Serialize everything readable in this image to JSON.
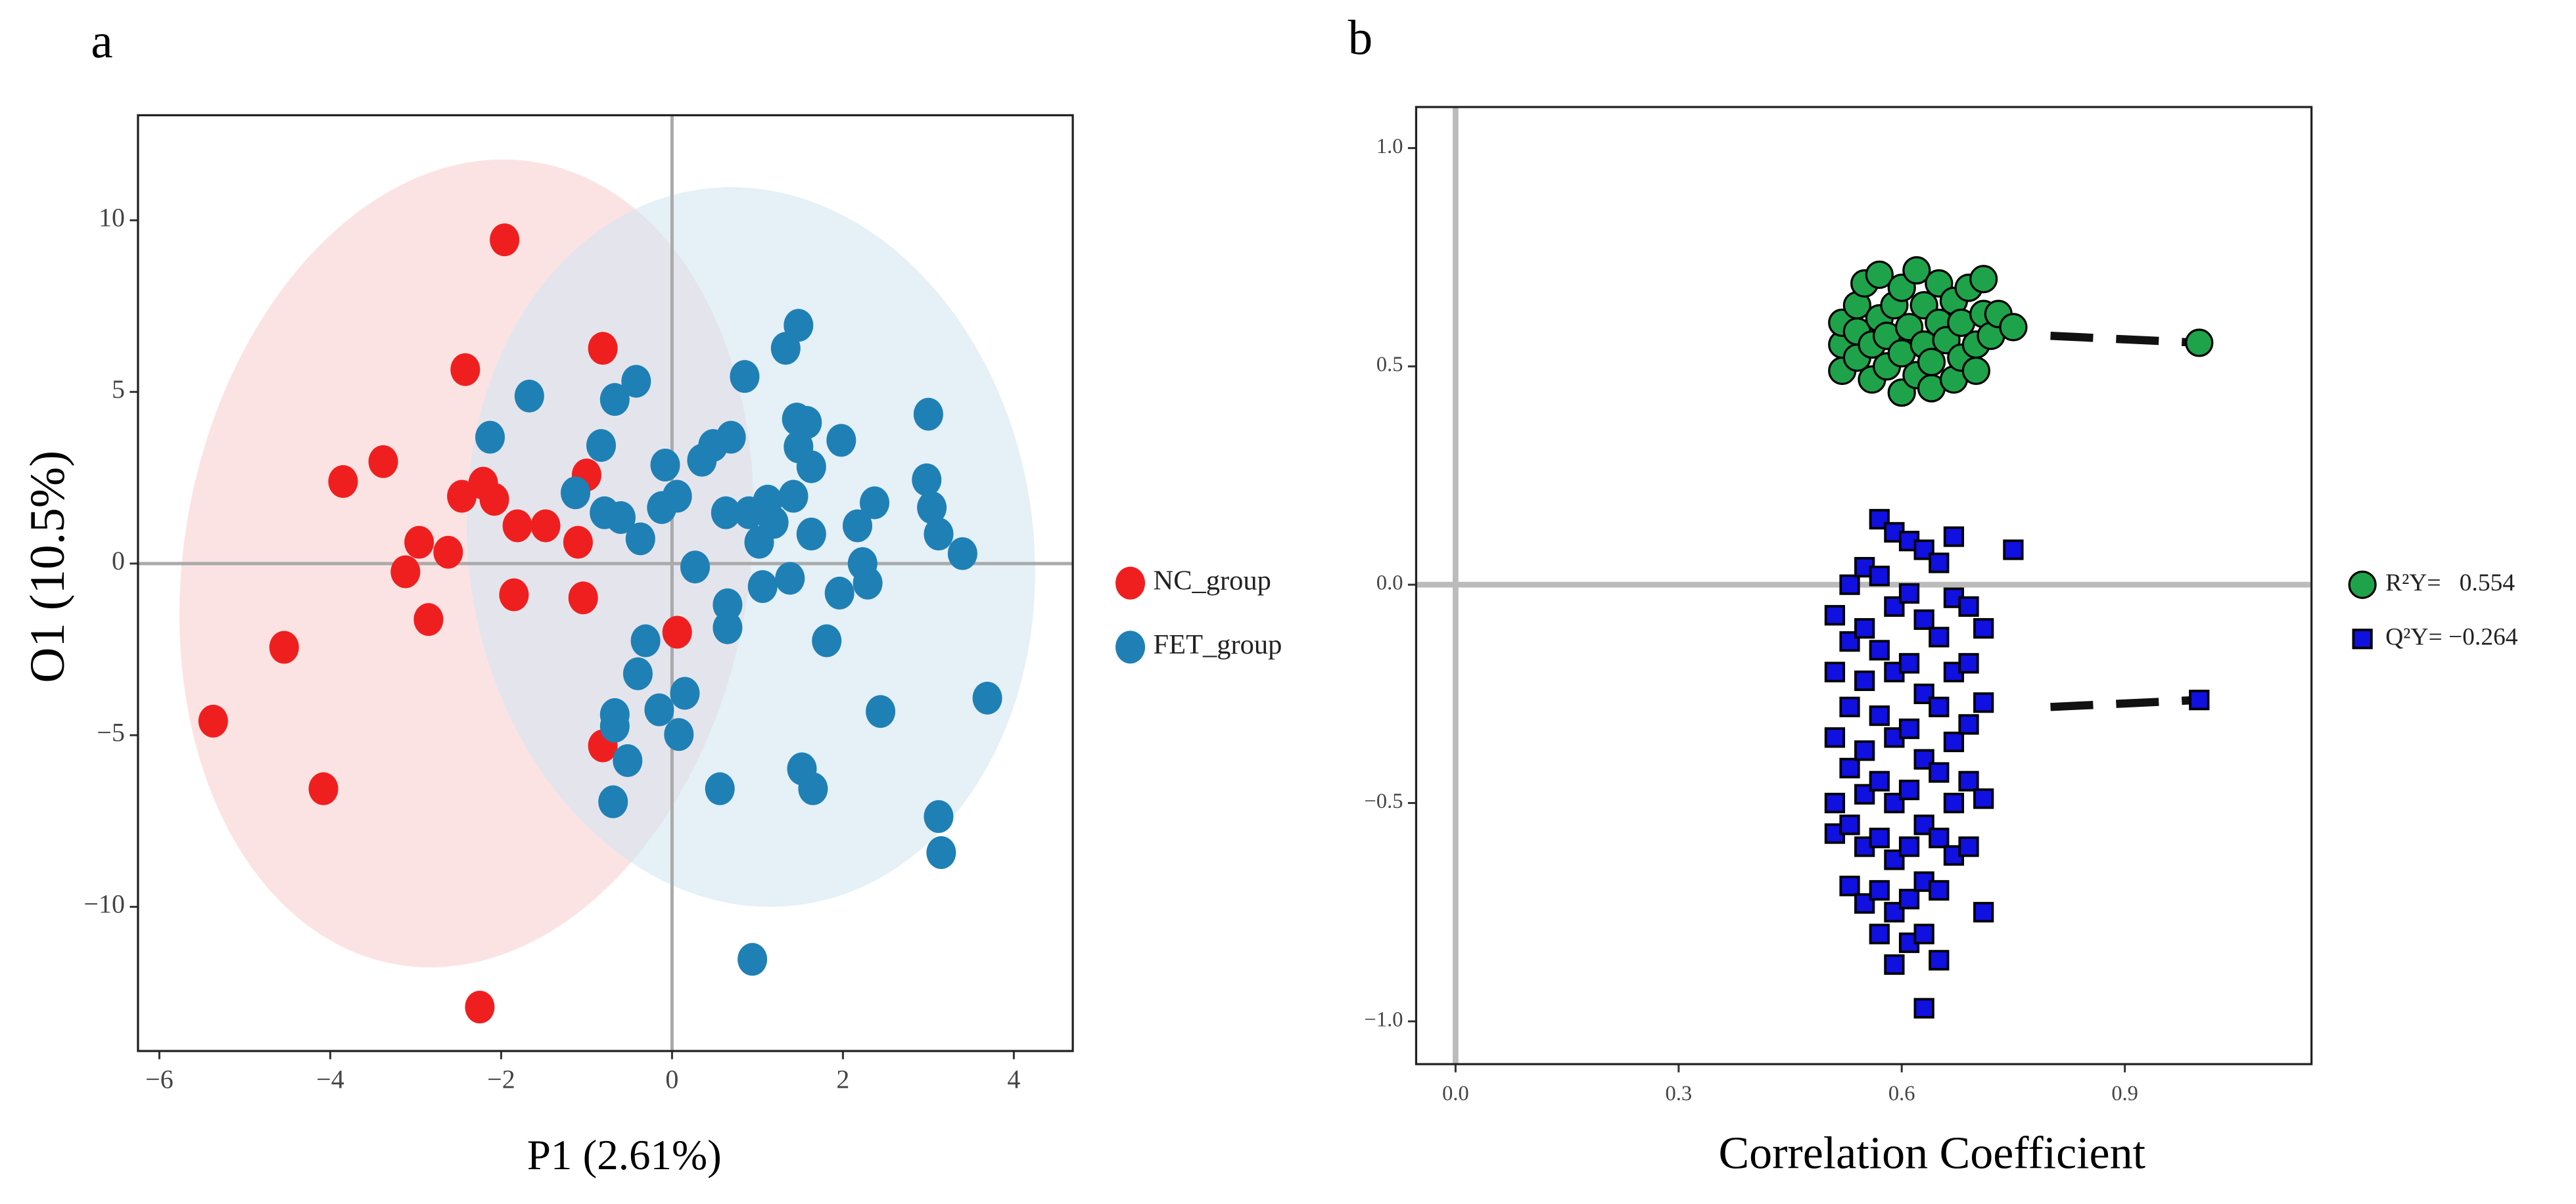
{
  "chart_data": [
    {
      "type": "scatter",
      "panel": "a",
      "xlabel": "P1 (2.61%)",
      "ylabel": "O1 (10.5%)",
      "xlim": [
        -6.25,
        4.69
      ],
      "ylim": [
        -14.2,
        13.06
      ],
      "xticks": [
        {
          "value": -6,
          "label": "−6"
        },
        {
          "value": -4,
          "label": "−4"
        },
        {
          "value": -2,
          "label": "−2"
        },
        0,
        2,
        4
      ],
      "yticks": [
        {
          "value": -10,
          "label": "−10"
        },
        {
          "value": -5,
          "label": "−5"
        },
        0,
        5,
        10
      ],
      "series": [
        {
          "name": "NC_group",
          "color": "#f01f1f",
          "marker": "circle",
          "x": [
            -1.96,
            -2.42,
            -0.81,
            -3.38,
            -3.85,
            -2.46,
            -2.21,
            -2.08,
            -1.0,
            -2.96,
            -1.81,
            -1.48,
            -1.1,
            -2.62,
            -3.12,
            -1.85,
            -1.04,
            -2.85,
            -4.54,
            0.06,
            -5.37,
            -4.08,
            -0.81,
            -2.25
          ],
          "values": [
            9.43,
            5.65,
            6.27,
            2.97,
            2.39,
            1.96,
            2.34,
            1.87,
            2.58,
            0.62,
            1.1,
            1.1,
            0.62,
            0.33,
            -0.24,
            -0.91,
            -1.0,
            -1.63,
            -2.44,
            -2.0,
            -4.59,
            -6.56,
            -5.31,
            -12.92
          ]
        },
        {
          "name": "FET_group",
          "color": "#1f80b5",
          "marker": "circle",
          "x": [
            1.48,
            1.33,
            3.0,
            -1.67,
            -0.42,
            -0.67,
            0.85,
            -2.13,
            1.46,
            1.58,
            1.98,
            0.69,
            0.48,
            0.35,
            -0.08,
            1.48,
            1.63,
            -0.83,
            -1.13,
            -0.79,
            -0.6,
            0.06,
            -0.12,
            -0.37,
            0.63,
            0.9,
            1.12,
            1.19,
            1.02,
            1.42,
            1.63,
            2.37,
            2.17,
            2.98,
            3.04,
            3.12,
            3.4,
            2.23,
            2.29,
            1.96,
            1.38,
            1.06,
            0.27,
            0.65,
            0.65,
            1.81,
            -0.31,
            -0.4,
            0.15,
            -0.15,
            -0.67,
            -0.67,
            0.08,
            -0.52,
            2.44,
            3.69,
            1.52,
            1.65,
            0.56,
            -0.69,
            3.12,
            3.15,
            0.94
          ],
          "values": [
            6.94,
            6.27,
            4.35,
            4.88,
            5.31,
            4.78,
            5.45,
            3.68,
            4.21,
            4.11,
            3.59,
            3.68,
            3.44,
            3.01,
            2.87,
            3.4,
            2.82,
            3.44,
            2.06,
            1.48,
            1.34,
            1.96,
            1.63,
            0.72,
            1.48,
            1.48,
            1.82,
            1.2,
            0.62,
            1.96,
            0.86,
            1.77,
            1.1,
            2.44,
            1.63,
            0.86,
            0.29,
            0,
            -0.57,
            -0.86,
            -0.43,
            -0.67,
            -0.1,
            -1.2,
            -1.87,
            -2.25,
            -2.25,
            -3.21,
            -3.78,
            -4.26,
            -4.4,
            -4.74,
            -4.98,
            -5.74,
            -4.31,
            -3.92,
            -5.98,
            -6.56,
            -6.56,
            -6.94,
            -7.37,
            -8.42,
            -11.53
          ]
        }
      ]
    },
    {
      "type": "scatter",
      "panel": "b",
      "xlabel": "Correlation Coefficient",
      "xlim": [
        -0.053,
        1.151
      ],
      "ylim": [
        -1.098,
        1.094
      ],
      "xticks": [
        {
          "value": 0,
          "label": "0.0"
        },
        0.3,
        0.6,
        0.9
      ],
      "yticks": [
        {
          "value": -1,
          "label": "−1.0"
        },
        {
          "value": -0.5,
          "label": "−0.5"
        },
        {
          "value": 0,
          "label": "0.0"
        },
        0.5,
        {
          "value": 1,
          "label": "1.0"
        }
      ],
      "series": [
        {
          "name": "R²Y=   0.554",
          "color": "#1ea34a",
          "marker": "circle",
          "x": [
            0.52,
            0.52,
            0.52,
            0.54,
            0.54,
            0.54,
            0.55,
            0.56,
            0.56,
            0.57,
            0.57,
            0.58,
            0.58,
            0.59,
            0.6,
            0.6,
            0.6,
            0.61,
            0.62,
            0.62,
            0.63,
            0.63,
            0.64,
            0.64,
            0.65,
            0.65,
            0.66,
            0.67,
            0.67,
            0.68,
            0.68,
            0.69,
            0.7,
            0.7,
            0.71,
            0.71,
            0.72,
            0.73,
            0.75,
            1.0
          ],
          "values": [
            0.49,
            0.55,
            0.6,
            0.52,
            0.58,
            0.64,
            0.69,
            0.47,
            0.55,
            0.61,
            0.71,
            0.5,
            0.57,
            0.64,
            0.44,
            0.53,
            0.68,
            0.59,
            0.48,
            0.72,
            0.55,
            0.64,
            0.45,
            0.51,
            0.6,
            0.69,
            0.56,
            0.47,
            0.65,
            0.52,
            0.6,
            0.68,
            0.55,
            0.49,
            0.62,
            0.7,
            0.57,
            0.62,
            0.59,
            0.554
          ]
        },
        {
          "name": "Q²Y= −0.264",
          "color": "#1010e0",
          "marker": "square",
          "x": [
            0.51,
            0.51,
            0.51,
            0.51,
            0.51,
            0.53,
            0.53,
            0.53,
            0.53,
            0.53,
            0.53,
            0.55,
            0.55,
            0.55,
            0.55,
            0.55,
            0.55,
            0.55,
            0.57,
            0.57,
            0.57,
            0.57,
            0.57,
            0.57,
            0.57,
            0.57,
            0.59,
            0.59,
            0.59,
            0.59,
            0.59,
            0.59,
            0.59,
            0.59,
            0.61,
            0.61,
            0.61,
            0.61,
            0.61,
            0.61,
            0.61,
            0.61,
            0.63,
            0.63,
            0.63,
            0.63,
            0.63,
            0.63,
            0.63,
            0.63,
            0.65,
            0.65,
            0.65,
            0.65,
            0.65,
            0.65,
            0.65,
            0.67,
            0.67,
            0.67,
            0.67,
            0.67,
            0.67,
            0.69,
            0.69,
            0.69,
            0.69,
            0.69,
            0.71,
            0.71,
            0.71,
            0.71,
            0.75,
            1.0
          ],
          "values": [
            -0.07,
            -0.2,
            -0.35,
            -0.5,
            -0.57,
            0.0,
            -0.13,
            -0.28,
            -0.42,
            -0.55,
            -0.69,
            0.04,
            -0.1,
            -0.22,
            -0.38,
            -0.48,
            -0.6,
            -0.73,
            0.15,
            0.02,
            -0.15,
            -0.3,
            -0.45,
            -0.58,
            -0.7,
            -0.8,
            0.12,
            -0.05,
            -0.2,
            -0.35,
            -0.5,
            -0.63,
            -0.75,
            -0.87,
            0.1,
            -0.02,
            -0.18,
            -0.33,
            -0.47,
            -0.6,
            -0.72,
            -0.82,
            0.08,
            -0.08,
            -0.25,
            -0.4,
            -0.55,
            -0.68,
            -0.8,
            -0.97,
            0.05,
            -0.12,
            -0.28,
            -0.43,
            -0.58,
            -0.7,
            -0.86,
            0.11,
            -0.03,
            -0.2,
            -0.36,
            -0.5,
            -0.62,
            -0.05,
            -0.18,
            -0.32,
            -0.45,
            -0.6,
            -0.1,
            -0.27,
            -0.49,
            -0.75,
            0.08,
            -0.264
          ]
        }
      ],
      "fit_lines": [
        {
          "x": [
            0.8,
            1.0
          ],
          "values": [
            0.57,
            0.554
          ]
        },
        {
          "x": [
            0.8,
            1.0
          ],
          "values": [
            -0.28,
            -0.264
          ]
        }
      ]
    }
  ]
}
